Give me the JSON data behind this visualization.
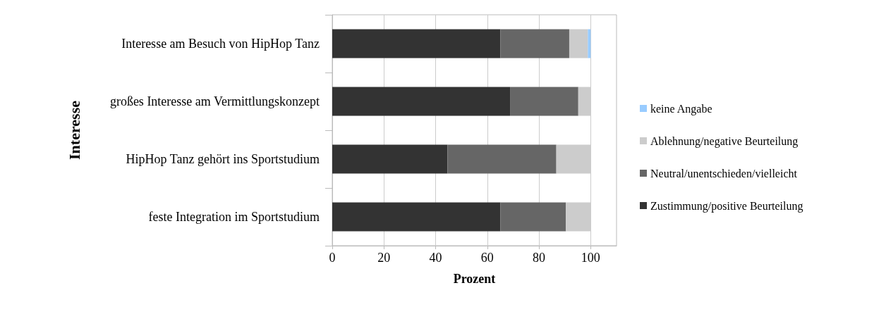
{
  "chart_data": {
    "type": "bar",
    "orientation": "horizontal",
    "stacked": true,
    "xlabel": "Prozent",
    "ylabel": "Interesse",
    "categories": [
      "Interesse am Besuch von HipHop Tanz",
      "großes Interesse am Vermittlungskonzept",
      "HipHop Tanz gehört ins Sportstudium",
      "feste Integration im Sportstudium"
    ],
    "series": [
      {
        "name": "Zustimmung/positive Beurteilung",
        "color": "#333333",
        "values": [
          65.1,
          68.8,
          44.6,
          65.1
        ]
      },
      {
        "name": "Neutral/unentschieden/vielleicht",
        "color": "#666666",
        "values": [
          26.6,
          26.4,
          42.1,
          25.3
        ]
      },
      {
        "name": "Ablehnung/negative Beurteilung",
        "color": "#cccccc",
        "values": [
          7.2,
          4.8,
          13.3,
          9.6
        ]
      },
      {
        "name": "keine Angabe",
        "color": "#99ccff",
        "values": [
          1.1,
          null,
          null,
          null
        ]
      }
    ],
    "xlim": [
      0,
      110
    ],
    "xticks": [
      0,
      20,
      40,
      60,
      80,
      100
    ],
    "grid": "x",
    "legend": "right"
  }
}
